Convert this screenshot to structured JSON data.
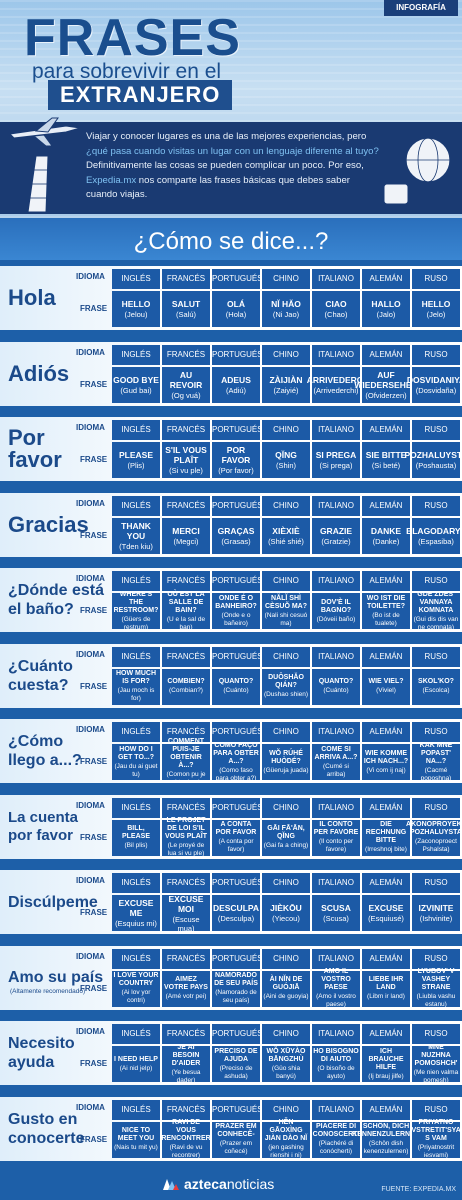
{
  "header": {
    "badge": "INFOGRAFÍA",
    "title": "FRASES",
    "subtitle": "para sobrevivir en el",
    "subtitle2": "EXTRANJERO",
    "intro_1": "Viajar y conocer lugares es una de las mejores experiencias, pero",
    "intro_2": "¿qué pasa cuando visitas un lugar con un lenguaje diferente al tuyo?",
    "intro_3": "Definitivamente las cosas se pueden complicar un poco. Por eso,",
    "intro_4a": "Expedia.mx",
    "intro_4b": " nos comparte las frases básicas que debes saber",
    "intro_5": "cuando viajas."
  },
  "section_title": "¿Cómo se dice...?",
  "labels": {
    "idioma": "IDIOMA",
    "frase": "FRASE"
  },
  "languages": [
    "INGLÉS",
    "FRANCÉS",
    "PORTUGUÉS",
    "CHINO",
    "ITALIANO",
    "ALEMÁN",
    "RUSO"
  ],
  "rows": [
    {
      "phrase": "Hola",
      "cells": [
        [
          "HELLO",
          "(Jelou)"
        ],
        [
          "SALUT",
          "(Salú)"
        ],
        [
          "OLÁ",
          "(Hola)"
        ],
        [
          "NĬ HĂO",
          "(Ni Jao)"
        ],
        [
          "CIAO",
          "(Chao)"
        ],
        [
          "HALLO",
          "(Jalo)"
        ],
        [
          "HELLO",
          "(Jelo)"
        ]
      ]
    },
    {
      "phrase": "Adiós",
      "cells": [
        [
          "GOOD BYE",
          "(Gud bai)"
        ],
        [
          "AU REVOIR",
          "(Og vuá)"
        ],
        [
          "ADEUS",
          "(Adiú)"
        ],
        [
          "ZÀIJIÀN",
          "(Zaiyié)"
        ],
        [
          "ARRIVEDERCI",
          "(Arrivederchi)"
        ],
        [
          "AUF WIEDERSEHEN",
          "(Ofviderzen)"
        ],
        [
          "DOSVIDANIYA",
          "(Dosvidaña)"
        ]
      ]
    },
    {
      "phrase": "Por favor",
      "cells": [
        [
          "PLEASE",
          "(Plis)"
        ],
        [
          "S'IL VOUS PLAÎT",
          "(Si vu ple)"
        ],
        [
          "POR FAVOR",
          "(Por favor)"
        ],
        [
          "QĬNG",
          "(Shin)"
        ],
        [
          "SI PREGA",
          "(Si prega)"
        ],
        [
          "SIE BITTE",
          "(Si beté)"
        ],
        [
          "POZHALUYSTA",
          "(Poshausta)"
        ]
      ]
    },
    {
      "phrase": "Gracias",
      "cells": [
        [
          "THANK YOU",
          "(Tden kiu)"
        ],
        [
          "MERCI",
          "(Megci)"
        ],
        [
          "GRAÇAS",
          "(Grasas)"
        ],
        [
          "XIÈXIÈ",
          "(Shié shié)"
        ],
        [
          "GRAZIE",
          "(Gratzie)"
        ],
        [
          "DANKE",
          "(Danke)"
        ],
        [
          "BLAGODARYA",
          "(Espasiba)"
        ]
      ]
    },
    {
      "phrase": "¿Dónde está el baño?",
      "size": "med",
      "cells": [
        [
          "WHERE'S THE RESTROOM?",
          "(Güers de restrum)"
        ],
        [
          "OÙ EST LA SALLE DE BAIN?",
          "(U e la sal de ban)"
        ],
        [
          "ONDE É O BANHEIRO?",
          "(Onde e o bañeiro)"
        ],
        [
          "NĂLĬ SHÌ CÈSUŎ MA?",
          "(Nali shi cesuó ma)"
        ],
        [
          "DOV'È IL BAGNO?",
          "(Dóveii baño)"
        ],
        [
          "WO IST DIE TOILETTE?",
          "(Bo ist de tualete)"
        ],
        [
          "GDE ZDES' VANNAYA KOMNATA",
          "(Gui dis dis van ne comnata)"
        ]
      ]
    },
    {
      "phrase": "¿Cuánto cuesta?",
      "size": "med",
      "cells": [
        [
          "HOW MUCH IS FOR?",
          "(Jau moch is for)"
        ],
        [
          "COMBIEN?",
          "(Combian?)"
        ],
        [
          "QUANTO?",
          "(Cuánto)"
        ],
        [
          "DUŌSHĂO QIÁN?",
          "(Dushao shien)"
        ],
        [
          "QUANTO?",
          "(Cuánto)"
        ],
        [
          "WIE VIEL?",
          "(Viviel)"
        ],
        [
          "SKOL'KO?",
          "(Escolca)"
        ]
      ]
    },
    {
      "phrase": "¿Cómo llego a...?",
      "size": "med",
      "cells": [
        [
          "HOW DO I GET TO...?",
          "(Jau du ai guet tu)"
        ],
        [
          "COMMENT PUIS-JE OBTENIR À...?",
          "(Comon pu je obtenig a)"
        ],
        [
          "COMO FAÇO PARA OBTER A...?",
          "(Como faso para obter a?)"
        ],
        [
          "WŎ RÚHÉ HUÒDÉ?",
          "(Güeruja juada)"
        ],
        [
          "COME SI ARRIVA A...?",
          "(Cumé si arriba)"
        ],
        [
          "WIE KOMME ICH NACH...?",
          "(Vi com ij naj)"
        ],
        [
          "KAK MNE POPAST' NA...?",
          "(Cacmé poposhna)"
        ]
      ]
    },
    {
      "phrase": "La cuenta por favor",
      "size": "small",
      "cells": [
        [
          "BILL, PLEASE",
          "(Bil plis)"
        ],
        [
          "LE PROJET DE LOI S'IL VOUS PLAÎT",
          "(Le proyé de lua si vu ple)"
        ],
        [
          "A CONTA POR FAVOR",
          "(A conta por favor)"
        ],
        [
          "GĀI FĀ'ĀN, QĬNG",
          "(Gai fa a ching)"
        ],
        [
          "IL CONTO PER FAVORE",
          "(Il conto per favore)"
        ],
        [
          "DIE RECHNUNG BITTE",
          "(Irreshnoj bite)"
        ],
        [
          "AKONOPROYEKT POZHALUYSTA",
          "(Zaconoproect Pshalsta)"
        ]
      ]
    },
    {
      "phrase": "Discúlpeme",
      "size": "med",
      "cells": [
        [
          "EXCUSE ME",
          "(Esquius mi)"
        ],
        [
          "EXCUSE MOI",
          "(Escuse mua)"
        ],
        [
          "DESCULPA",
          "(Desculpa)"
        ],
        [
          "JIÈKŌU",
          "(Yiecou)"
        ],
        [
          "SCUSA",
          "(Scusa)"
        ],
        [
          "EXCUSE",
          "(Esquiusé)"
        ],
        [
          "IZVINITE",
          "(Ishvinite)"
        ]
      ]
    },
    {
      "phrase": "Amo su país",
      "sub": "(Altamente recomendado)",
      "size": "med",
      "cells": [
        [
          "I LOVE YOUR COUNTRY",
          "(Ai lov yor contri)"
        ],
        [
          "AIMEZ VOTRE PAYS",
          "(Amé votr pei)"
        ],
        [
          "NAMORADO DE SEU PAÍS",
          "(Namorado de seu país)"
        ],
        [
          "ÀI NĬN DE GUÓJIĀ",
          "(Aini de guoyia)"
        ],
        [
          "AMO IL VOSTRO PAESE",
          "(Amo il vostro paese)"
        ],
        [
          "LIEBE IHR LAND",
          "(Libm ir land)"
        ],
        [
          "LYUBOV' V VASHEY STRANE",
          "(Liubla vashu estanu)"
        ]
      ]
    },
    {
      "phrase": "Necesito ayuda",
      "size": "med",
      "cells": [
        [
          "I NEED HELP",
          "(Ai nid jelp)"
        ],
        [
          "JE AI BESOIN D'AIDER",
          "(Ye besua dader)"
        ],
        [
          "PRECISO DE AJUDA",
          "(Preciso de ashuda)"
        ],
        [
          "WŎ XŪYÀO BĀNGZHÙ",
          "(Güo shia banyú)"
        ],
        [
          "HO BISOGNO DI AIUTO",
          "(O bisoño de ayuto)"
        ],
        [
          "ICH BRAUCHE HILFE",
          "(Ij brauj jilfe)"
        ],
        [
          "MNE NUZHNA POMOSHCH'",
          "(Me nien valma pomesh)"
        ]
      ]
    },
    {
      "phrase": "Gusto en conocerte",
      "size": "med",
      "cells": [
        [
          "NICE TO MEET YOU",
          "(Nais tu mit yu)"
        ],
        [
          "RAVI DE VOUS RENCONTRER",
          "(Ravi de vu recontrer)"
        ],
        [
          "PRAZER EM CONHECÊ-",
          "(Prazer em coñecé)"
        ],
        [
          "HĚN GĀOXÌNG JIÀN DÀO NĬ",
          "(jen gashing rienshi i ni)"
        ],
        [
          "PIACERE DI CONOSCERTI",
          "(Piachéré di conócherti)"
        ],
        [
          "SCHÖN, DICH KENNENZULERNEN",
          "(Schön dish kenenzulernen)"
        ],
        [
          "PRIYATNO VSTRETIT'SYA S VAM",
          "(Priyatnostrit iesvami)"
        ]
      ]
    }
  ],
  "footer": {
    "logo_a": "azteca",
    "logo_b": "noticias",
    "source": "FUENTE: EXPEDIA.MX"
  },
  "colors": {
    "primary": "#1c5aa6",
    "dark": "#1a3a72",
    "accent": "#7fc1f2"
  }
}
